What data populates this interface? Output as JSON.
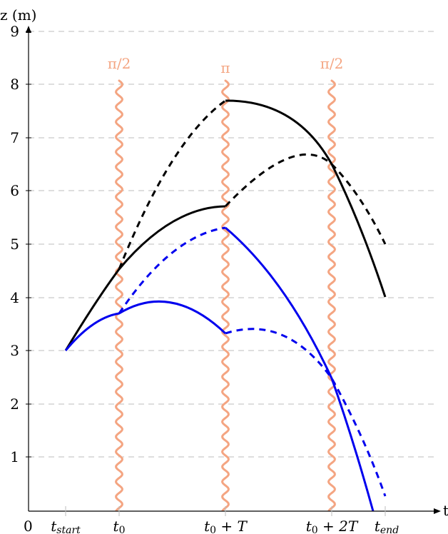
{
  "axes": {
    "z_label": "z (m)",
    "t_label": "t",
    "origin_label": "0",
    "y_ticks": [
      "1",
      "2",
      "3",
      "4",
      "5",
      "6",
      "7",
      "8",
      "9"
    ],
    "t_ticks": {
      "t_start": {
        "base": "t",
        "sub": "start"
      },
      "t0": {
        "base": "t",
        "sub": "0"
      },
      "t0T": {
        "base": "t",
        "sub": "0",
        "rest": " + T"
      },
      "t02T": {
        "base": "t",
        "sub": "0",
        "rest": " + 2T"
      },
      "t_end": {
        "base": "t",
        "sub": "end"
      }
    }
  },
  "pulses": {
    "p1": "π/2",
    "p2": "π",
    "p3": "π/2"
  },
  "colors": {
    "pulse": "#f4a582",
    "path_upper": "#000000",
    "path_lower": "#0000ee"
  }
}
